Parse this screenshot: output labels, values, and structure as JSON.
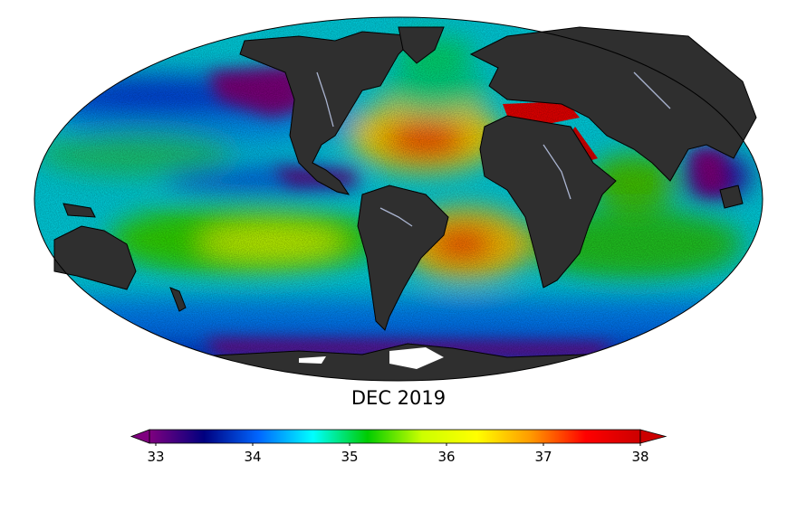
{
  "title": "DEC 2019",
  "colorbar": {
    "ticks": [
      "33",
      "34",
      "35",
      "36",
      "37",
      "38"
    ],
    "min": 33,
    "max": 38,
    "extend": "both",
    "colormap": [
      "#7f007f",
      "#00007f",
      "#0066ff",
      "#00ffff",
      "#00cc00",
      "#ccff00",
      "#ffff00",
      "#ff9900",
      "#ff0000",
      "#cc0000"
    ]
  },
  "colors": {
    "land": "#2f2f2f",
    "ice": "#ffffff",
    "outline": "#000000",
    "rivers": "#aab4d0"
  }
}
